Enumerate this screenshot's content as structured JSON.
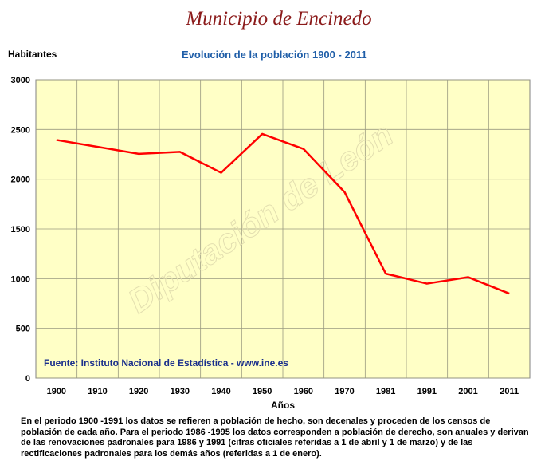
{
  "header": {
    "title": "Municipio de Encinedo",
    "ylabel": "Habitantes",
    "subtitle": "Evolución de la población 1900 - 2011"
  },
  "source_note": "Fuente: Instituto Nacional de Estadística - www.ine.es",
  "watermark": "Diputación de León",
  "footnote": "En el periodo 1900 -1991 los datos se refieren a población de hecho, son decenales y proceden de los censos de población de cada año. Para el periodo 1986 -1995 los datos corresponden a población de derecho, son anuales y derivan de las renovaciones padronales para 1986 y 1991 (cifras oficiales referidas a 1 de abril y 1 de marzo) y de las rectificaciones padronales para los demás años (referidas a 1 de enero).",
  "colors": {
    "plot_bg": "#ffffc6",
    "line": "#ff0000",
    "title": "#8b1a1a",
    "subtitle": "#1f5ea8",
    "source": "#1a2f8c"
  },
  "chart_data": {
    "type": "line",
    "title": "Evolución de la población 1900 - 2011",
    "xlabel": "Años",
    "ylabel": "Habitantes",
    "categories": [
      "1900",
      "1910",
      "1920",
      "1930",
      "1940",
      "1950",
      "1960",
      "1970",
      "1981",
      "1991",
      "2001",
      "2011"
    ],
    "yticks": [
      0,
      500,
      1000,
      1500,
      2000,
      2500,
      3000
    ],
    "ylim": [
      0,
      3000
    ],
    "grid": true,
    "series": [
      {
        "values": [
          2395,
          2325,
          2255,
          2275,
          2065,
          2455,
          2305,
          1870,
          1050,
          950,
          1015,
          850
        ]
      }
    ]
  }
}
